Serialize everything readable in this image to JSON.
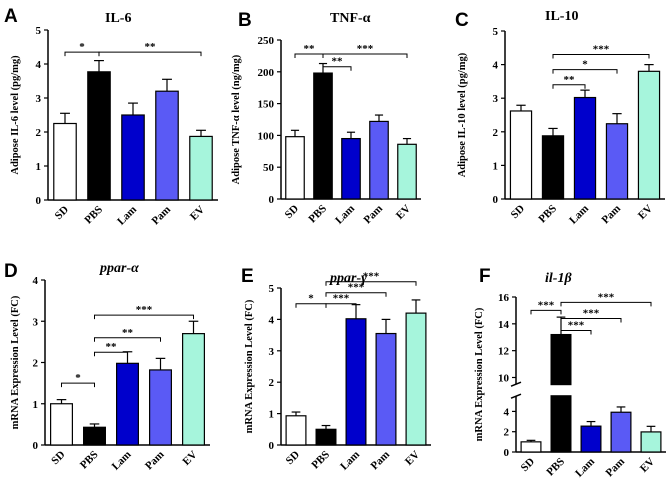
{
  "figure": {
    "category_colors": {
      "SD": "#ffffff",
      "PBS": "#000000",
      "Lam": "#0000cc",
      "Pam": "#5a5af5",
      "EV": "#a6f5dc"
    }
  },
  "chart_data": [
    {
      "id": "A",
      "letter": "A",
      "type": "bar",
      "title": "IL-6",
      "title_italic": false,
      "ylabel": "Adipose IL-6 level (pg/mg)",
      "categories": [
        "SD",
        "PBS",
        "Lam",
        "Pam",
        "EV"
      ],
      "values": [
        2.25,
        3.77,
        2.5,
        3.2,
        1.87
      ],
      "errors": [
        0.3,
        0.33,
        0.35,
        0.35,
        0.18
      ],
      "ylim": [
        0,
        5
      ],
      "yticks": [
        0,
        1,
        2,
        3,
        4,
        5
      ],
      "ytick_labels": [
        "0",
        "1",
        "2",
        "3",
        "4",
        "5"
      ],
      "significance": [
        {
          "from": 0,
          "to": 1,
          "label": "*",
          "level": 4.35
        },
        {
          "from": 1,
          "to": 4,
          "label": "**",
          "level": 4.35
        }
      ]
    },
    {
      "id": "B",
      "letter": "B",
      "type": "bar",
      "title": "TNF-α",
      "title_italic": false,
      "ylabel": "Adipose TNF-α level (ng/mg)",
      "categories": [
        "SD",
        "PBS",
        "Lam",
        "Pam",
        "EV"
      ],
      "values": [
        98,
        198,
        95,
        122,
        86
      ],
      "errors": [
        10,
        15,
        10,
        10,
        9
      ],
      "ylim": [
        0,
        250
      ],
      "yticks": [
        0,
        50,
        100,
        150,
        200,
        250
      ],
      "ytick_labels": [
        "0",
        "50",
        "100",
        "150",
        "200",
        "250"
      ],
      "significance": [
        {
          "from": 0,
          "to": 1,
          "label": "**",
          "level": 228
        },
        {
          "from": 1,
          "to": 2,
          "label": "**",
          "level": 208
        },
        {
          "from": 1,
          "to": 4,
          "label": "***",
          "level": 228
        }
      ]
    },
    {
      "id": "C",
      "letter": "C",
      "type": "bar",
      "title": "IL-10",
      "title_italic": false,
      "ylabel": "Adipose IL-10 level (pg/mg)",
      "categories": [
        "SD",
        "PBS",
        "Lam",
        "Pam",
        "EV"
      ],
      "values": [
        2.62,
        1.88,
        3.02,
        2.24,
        3.8
      ],
      "errors": [
        0.17,
        0.22,
        0.22,
        0.3,
        0.2
      ],
      "ylim": [
        0,
        5
      ],
      "yticks": [
        0,
        1,
        2,
        3,
        4,
        5
      ],
      "ytick_labels": [
        "0",
        "1",
        "2",
        "3",
        "4",
        "5"
      ],
      "significance": [
        {
          "from": 1,
          "to": 2,
          "label": "**",
          "level": 3.4
        },
        {
          "from": 1,
          "to": 3,
          "label": "*",
          "level": 3.85
        },
        {
          "from": 1,
          "to": 4,
          "label": "***",
          "level": 4.3
        }
      ]
    },
    {
      "id": "D",
      "letter": "D",
      "type": "bar",
      "title": "ppar-α",
      "title_italic": true,
      "ylabel": "mRNA Expression Level (FC)",
      "categories": [
        "SD",
        "PBS",
        "Lam",
        "Pam",
        "EV"
      ],
      "values": [
        1.0,
        0.43,
        1.98,
        1.82,
        2.7
      ],
      "errors": [
        0.1,
        0.08,
        0.28,
        0.28,
        0.3
      ],
      "ylim": [
        0,
        4
      ],
      "yticks": [
        0,
        1,
        2,
        3,
        4
      ],
      "ytick_labels": [
        "0",
        "1",
        "2",
        "3",
        "4"
      ],
      "significance": [
        {
          "from": 0,
          "to": 1,
          "label": "*",
          "level": 1.5
        },
        {
          "from": 1,
          "to": 2,
          "label": "**",
          "level": 2.25
        },
        {
          "from": 1,
          "to": 3,
          "label": "**",
          "level": 2.6
        },
        {
          "from": 1,
          "to": 4,
          "label": "***",
          "level": 3.15
        }
      ]
    },
    {
      "id": "E",
      "letter": "E",
      "type": "bar",
      "title": "ppar-γ",
      "title_italic": true,
      "ylabel": "mRNA Expression Level (FC)",
      "categories": [
        "SD",
        "PBS",
        "Lam",
        "Pam",
        "EV"
      ],
      "values": [
        0.93,
        0.5,
        4.02,
        3.55,
        4.2
      ],
      "errors": [
        0.12,
        0.12,
        0.45,
        0.45,
        0.42
      ],
      "ylim": [
        0,
        5
      ],
      "yticks": [
        0,
        1,
        2,
        3,
        4,
        5
      ],
      "ytick_labels": [
        "0",
        "1",
        "2",
        "3",
        "4",
        "5"
      ],
      "significance": [
        {
          "from": 0,
          "to": 1,
          "label": "*",
          "level": 4.5
        },
        {
          "from": 1,
          "to": 2,
          "label": "***",
          "level": 4.5
        },
        {
          "from": 1,
          "to": 3,
          "label": "***",
          "level": 4.85
        },
        {
          "from": 1,
          "to": 4,
          "label": "***",
          "level": 5.2
        }
      ]
    },
    {
      "id": "F",
      "letter": "F",
      "type": "bar",
      "title": "il-1β",
      "title_italic": true,
      "ylabel": "mRNA Expression Level (FC)",
      "categories": [
        "SD",
        "PBS",
        "Lam",
        "Pam",
        "EV"
      ],
      "values": [
        1.0,
        13.2,
        2.55,
        3.92,
        1.98
      ],
      "errors": [
        0.15,
        1.3,
        0.45,
        0.52,
        0.55
      ],
      "ylim": [
        0,
        16
      ],
      "axis_break": [
        5.5,
        9.5
      ],
      "yticks": [
        0,
        2,
        4,
        10,
        12,
        14,
        16
      ],
      "ytick_labels": [
        "0",
        "2",
        "4",
        "10",
        "12",
        "14",
        "16"
      ],
      "significance": [
        {
          "from": 0,
          "to": 1,
          "label": "***",
          "level": 15.0
        },
        {
          "from": 1,
          "to": 2,
          "label": "***",
          "level": 13.5
        },
        {
          "from": 1,
          "to": 3,
          "label": "***",
          "level": 14.4
        },
        {
          "from": 1,
          "to": 4,
          "label": "***",
          "level": 15.6
        }
      ]
    }
  ]
}
